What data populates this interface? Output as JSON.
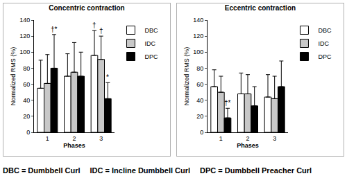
{
  "chart_data": [
    {
      "type": "bar",
      "title": "Concentric contraction",
      "x_label": "Phases",
      "y_label": "Normalized RMS (%)",
      "categories": [
        "1",
        "2",
        "3"
      ],
      "series": [
        {
          "name": "DBC",
          "color": "#ffffff",
          "values": [
            55,
            70,
            96
          ],
          "errors": [
            35,
            28,
            31
          ]
        },
        {
          "name": "IDC",
          "color": "#c8c8c8",
          "values": [
            61,
            75,
            91
          ],
          "errors": [
            36,
            37,
            29
          ]
        },
        {
          "name": "DPC",
          "color": "#000000",
          "values": [
            80,
            70,
            42
          ],
          "errors": [
            42,
            30,
            20
          ]
        }
      ],
      "annotations": [
        {
          "category": "1",
          "series": "DPC",
          "text": "†*"
        },
        {
          "category": "3",
          "series": "DBC",
          "text": "†"
        },
        {
          "category": "3",
          "series": "IDC",
          "text": "†"
        },
        {
          "category": "3",
          "series": "DPC",
          "text": "*"
        }
      ],
      "ylim": [
        0,
        140
      ],
      "yticks": [
        0,
        20,
        40,
        60,
        80,
        100,
        120,
        140
      ],
      "grid": false,
      "legend": "right"
    },
    {
      "type": "bar",
      "title": "Eccentric contraction",
      "x_label": "Phases",
      "y_label": "Normalized RMS (%)",
      "categories": [
        "1",
        "2",
        "3"
      ],
      "series": [
        {
          "name": "DBC",
          "color": "#ffffff",
          "values": [
            57,
            48,
            44
          ],
          "errors": [
            21,
            26,
            28
          ]
        },
        {
          "name": "IDC",
          "color": "#c8c8c8",
          "values": [
            50,
            48,
            42
          ],
          "errors": [
            20,
            24,
            28
          ]
        },
        {
          "name": "DPC",
          "color": "#000000",
          "values": [
            18,
            33,
            57
          ],
          "errors": [
            12,
            24,
            32
          ]
        }
      ],
      "annotations": [
        {
          "category": "1",
          "series": "DPC",
          "text": "†*"
        }
      ],
      "ylim": [
        0,
        140
      ],
      "yticks": [
        0,
        20,
        40,
        60,
        80,
        100,
        120,
        140
      ],
      "grid": false,
      "legend": "right"
    }
  ],
  "note": [
    "DBC = Dumbbell Curl",
    "IDC = Incline Dumbbell Curl",
    "DPC = Dumbbell Preacher Curl"
  ]
}
